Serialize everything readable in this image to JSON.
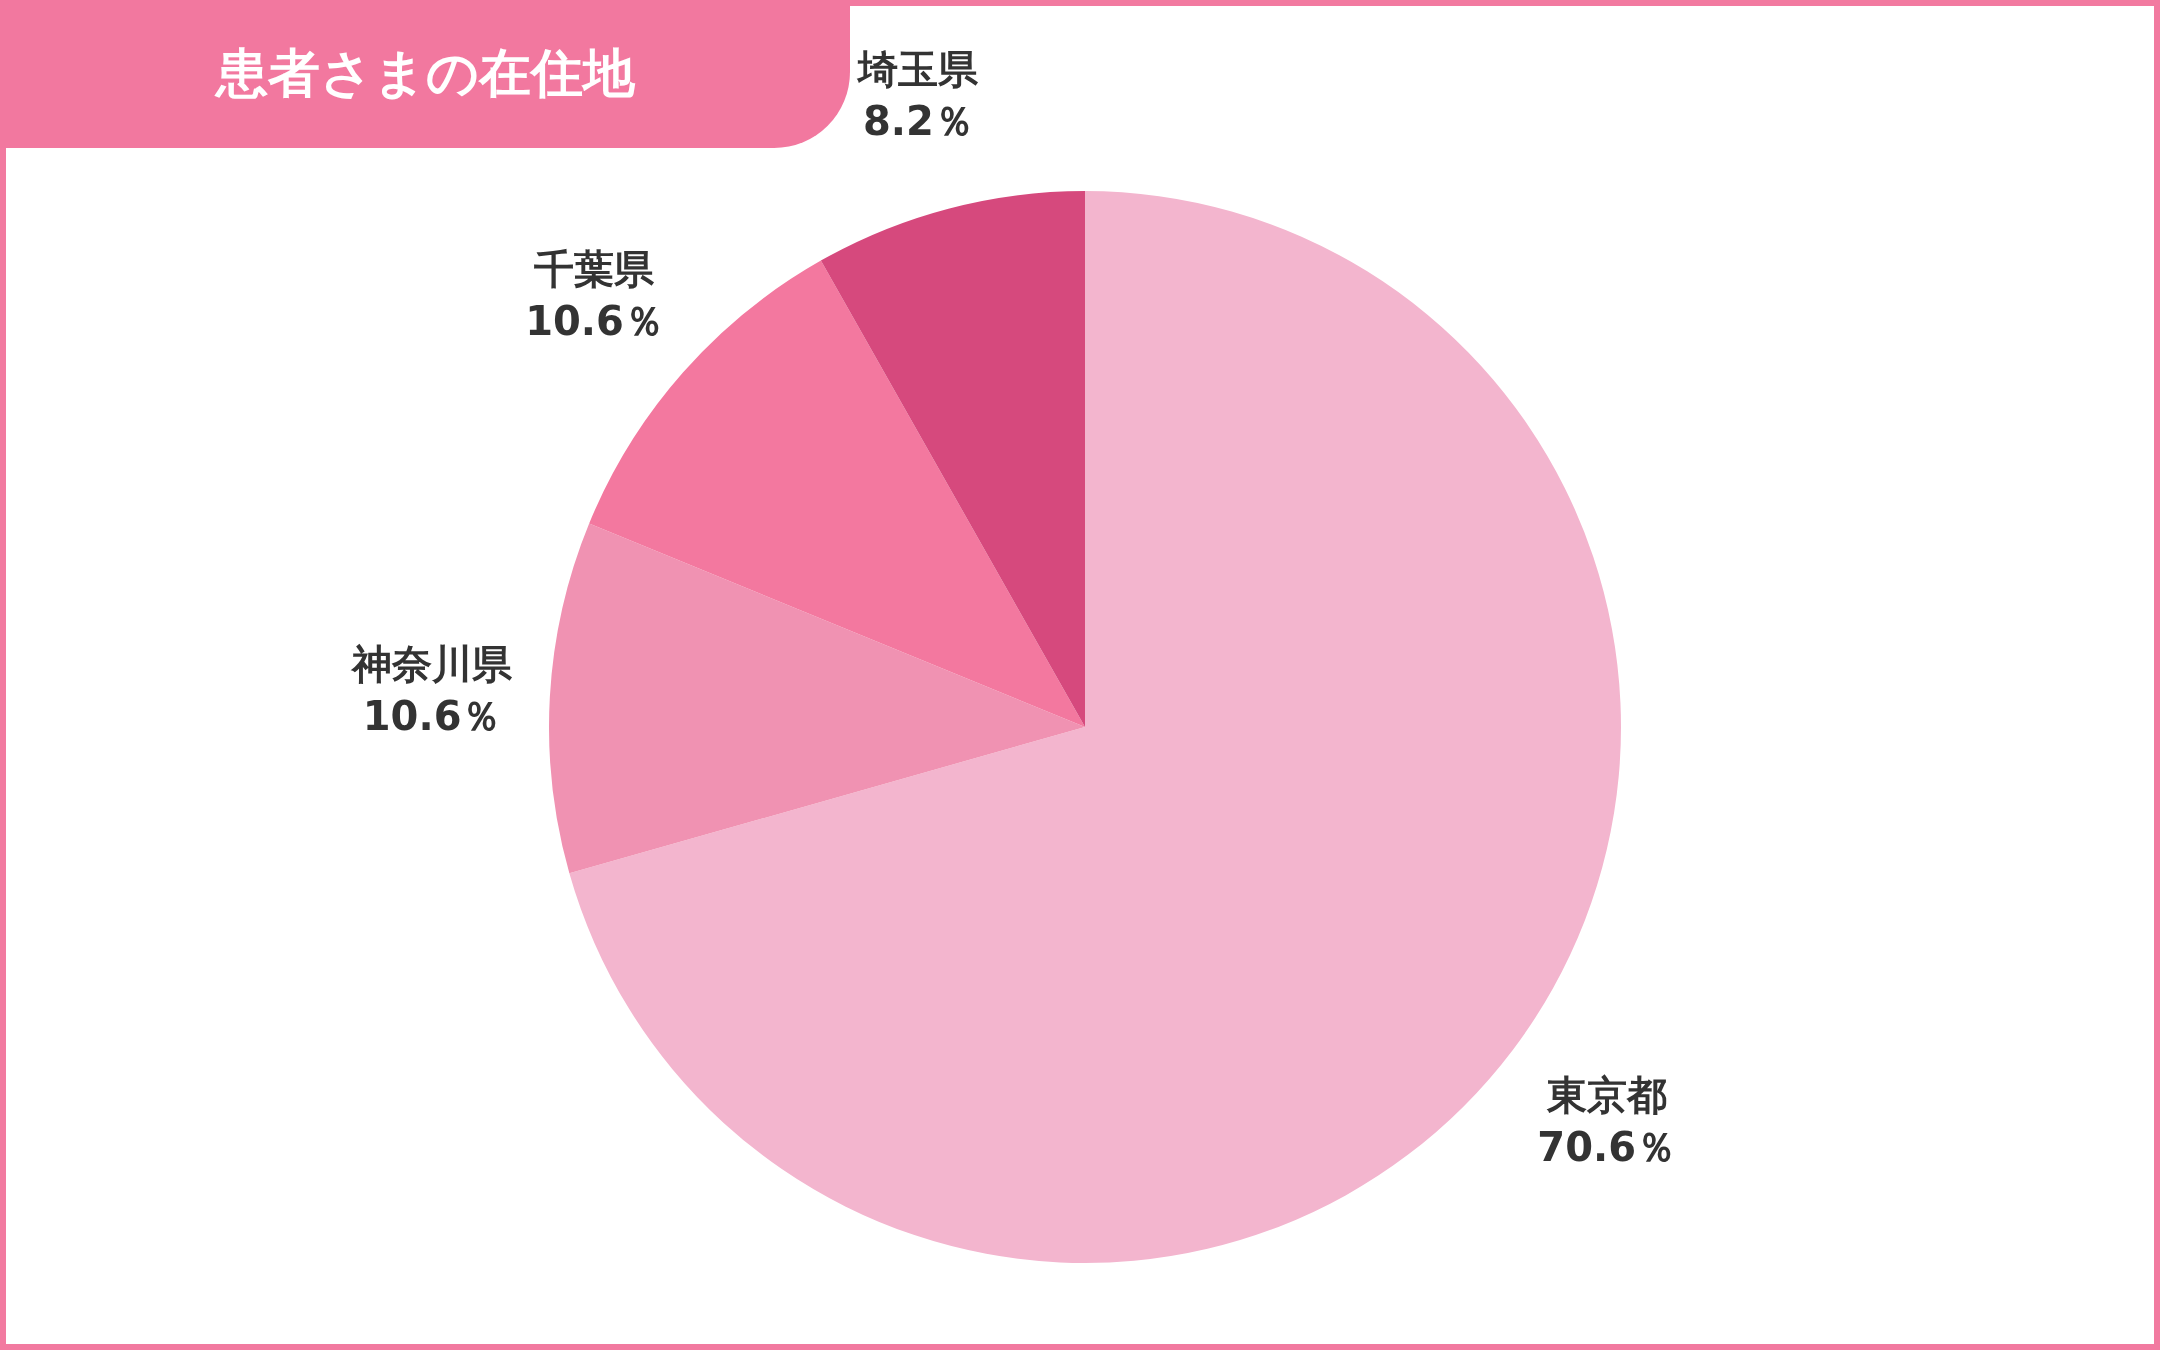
{
  "chart_data": {
    "type": "pie",
    "title": "患者さまの在住地",
    "categories": [
      "東京都",
      "神奈川県",
      "千葉県",
      "埼玉県"
    ],
    "values": [
      70.6,
      10.6,
      10.6,
      8.2
    ],
    "colors": [
      "#f3b5ce",
      "#f092b2",
      "#f3789f",
      "#d6497d"
    ],
    "value_labels": [
      "70.6％",
      "10.6％",
      "10.6％",
      "8.2％"
    ]
  }
}
